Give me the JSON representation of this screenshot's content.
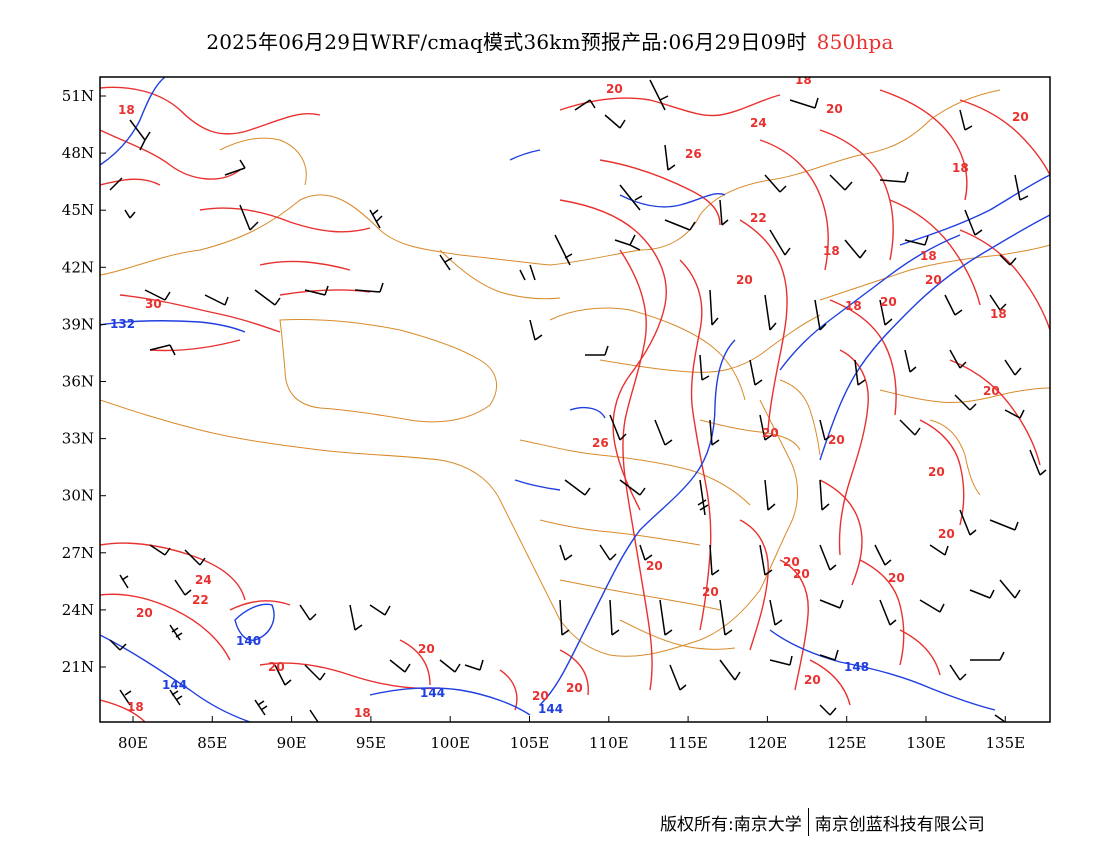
{
  "title": {
    "main": "2025年06月29日WRF/cmaq模式36km预报产品:06月29日09时",
    "level": "850hpa",
    "level_color": "#e8312f"
  },
  "axes": {
    "lat_labels": [
      "51N",
      "48N",
      "45N",
      "42N",
      "39N",
      "36N",
      "33N",
      "30N",
      "27N",
      "24N",
      "21N"
    ],
    "lon_labels": [
      "80E",
      "85E",
      "90E",
      "95E",
      "100E",
      "105E",
      "110E",
      "115E",
      "120E",
      "125E",
      "130E",
      "135E"
    ]
  },
  "legend_colors": {
    "temperature_isoline": "#e8312f",
    "geopotential_isoline": "#1f3fe0",
    "boundaries": "#d98a2a",
    "wind_barbs": "#000000"
  },
  "isoline_labels": {
    "temperature": [
      "18",
      "20",
      "24",
      "26",
      "20",
      "18",
      "22",
      "18",
      "18",
      "20",
      "18",
      "20",
      "20",
      "18",
      "18",
      "18",
      "30",
      "20",
      "20",
      "20",
      "20",
      "26",
      "20",
      "20",
      "20",
      "20",
      "24",
      "22",
      "20",
      "20",
      "20",
      "20",
      "20",
      "18",
      "20",
      "20",
      "20",
      "20"
    ],
    "geopotential": [
      "132",
      "140",
      "144",
      "144",
      "144",
      "148"
    ]
  },
  "copyright": {
    "left": "版权所有:南京大学",
    "right": "南京创蓝科技有限公司"
  }
}
